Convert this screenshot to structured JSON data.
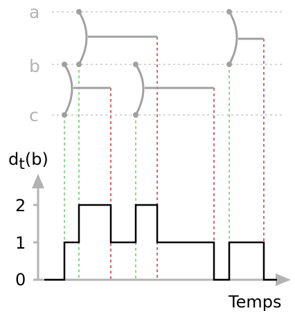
{
  "rows": {
    "labels": [
      "a",
      "b",
      "c"
    ]
  },
  "y_axis": {
    "label_main": "d",
    "label_sub": "t",
    "label_arg": "(b)",
    "ticks": [
      "0",
      "1",
      "2"
    ]
  },
  "x_axis": {
    "label": "Temps"
  },
  "colors": {
    "row_line": "#c8c8c8",
    "gate": "#a0a0a0",
    "marker_join": "#66cc66",
    "marker_leave": "#cc3333",
    "step": "#000000",
    "axis": "#b3b3b3"
  },
  "chart_data": {
    "type": "line",
    "step": true,
    "xlabel": "Temps",
    "ylabel": "dt(b)",
    "y_ticks": [
      0,
      1,
      2
    ],
    "series": [
      {
        "values": [
          0,
          1,
          2,
          1,
          2,
          1,
          0,
          1,
          0
        ]
      }
    ]
  }
}
